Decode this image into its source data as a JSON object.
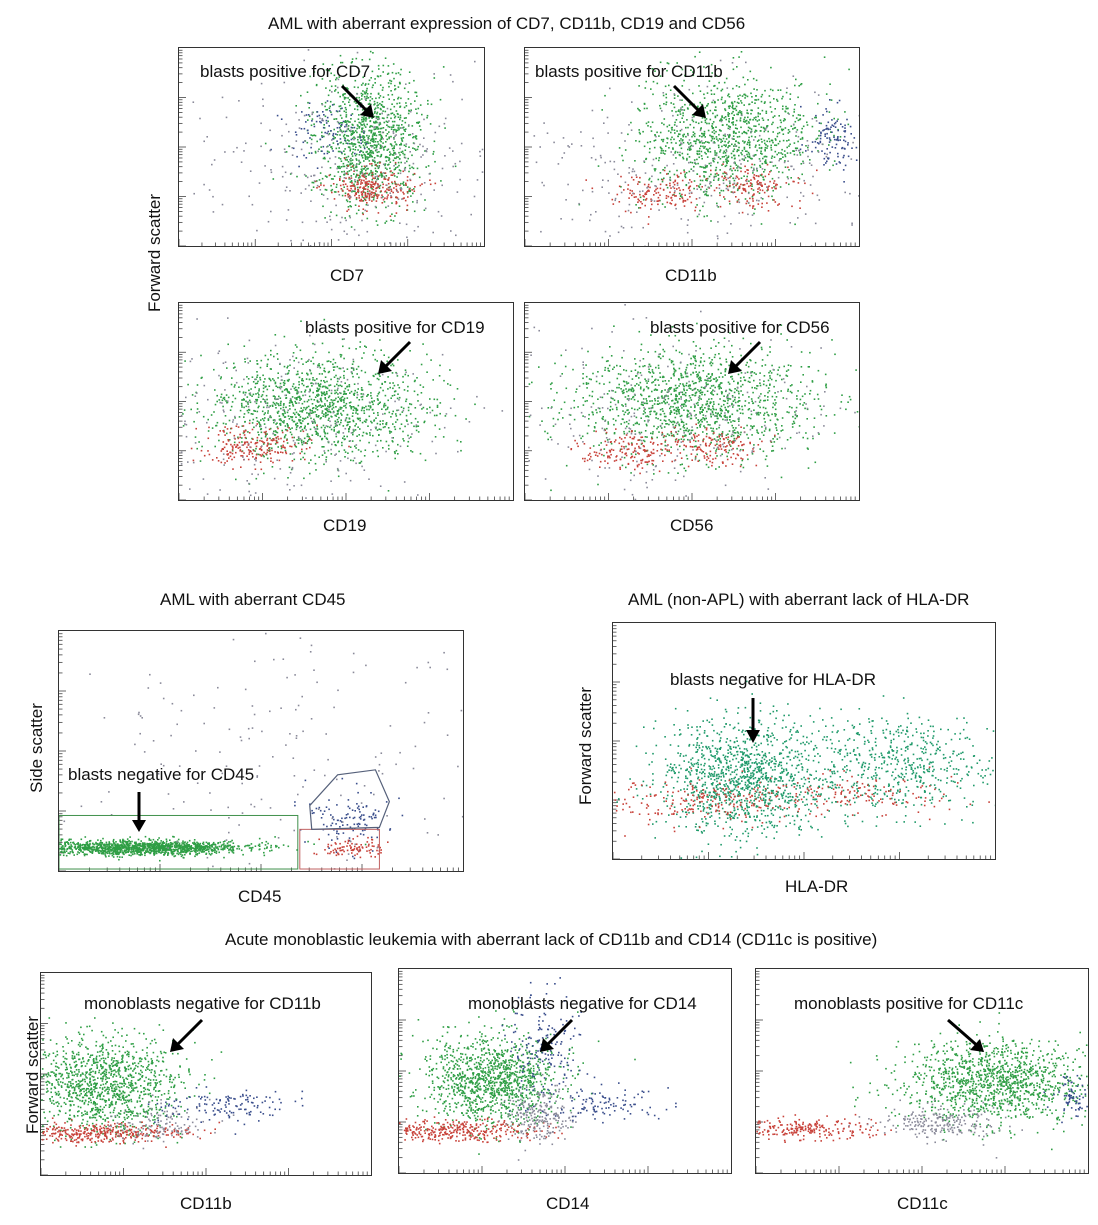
{
  "titles": {
    "top": "AML with aberrant expression of CD7, CD11b, CD19 and CD56",
    "cd45": "AML with aberrant  CD45",
    "hladr": "AML (non-APL) with aberrant  lack of HLA-DR",
    "mono": "Acute monoblastic leukemia with aberrant lack of CD11b and CD14 (CD11c is positive)"
  },
  "y_labels": {
    "top": "Forward scatter",
    "cd45": "Side scatter",
    "hladr": "Forward scatter",
    "mono": "Forward scatter"
  },
  "colors": {
    "green": "#2f9e45",
    "red": "#c8423a",
    "blue": "#3a4e8c",
    "grey": "#8a8a9a",
    "teal": "#1f9a6a"
  },
  "chart_data": [
    {
      "type": "scatter",
      "id": "cd7",
      "xlabel": "CD7",
      "ylabel": "Forward scatter",
      "annotation": "blasts positive for CD7",
      "populations": [
        {
          "color": "green",
          "cx": 0.62,
          "cy": 0.45,
          "sx": 0.09,
          "sy": 0.18,
          "n": 1100
        },
        {
          "color": "red",
          "cx": 0.63,
          "cy": 0.7,
          "sx": 0.07,
          "sy": 0.05,
          "n": 260
        },
        {
          "color": "blue",
          "cx": 0.48,
          "cy": 0.42,
          "sx": 0.06,
          "sy": 0.07,
          "n": 90
        },
        {
          "color": "grey",
          "cx": 0.55,
          "cy": 0.6,
          "sx": 0.25,
          "sy": 0.25,
          "n": 300
        }
      ]
    },
    {
      "type": "scatter",
      "id": "cd11b",
      "xlabel": "CD11b",
      "ylabel": "Forward scatter",
      "annotation": "blasts positive for CD11b",
      "populations": [
        {
          "color": "green",
          "cx": 0.6,
          "cy": 0.45,
          "sx": 0.13,
          "sy": 0.16,
          "n": 1100
        },
        {
          "color": "red",
          "cx": 0.4,
          "cy": 0.72,
          "sx": 0.08,
          "sy": 0.05,
          "n": 140
        },
        {
          "color": "red",
          "cx": 0.68,
          "cy": 0.7,
          "sx": 0.06,
          "sy": 0.05,
          "n": 140
        },
        {
          "color": "blue",
          "cx": 0.92,
          "cy": 0.45,
          "sx": 0.04,
          "sy": 0.08,
          "n": 110
        },
        {
          "color": "grey",
          "cx": 0.5,
          "cy": 0.6,
          "sx": 0.28,
          "sy": 0.22,
          "n": 300
        }
      ]
    },
    {
      "type": "scatter",
      "id": "cd19",
      "xlabel": "CD19",
      "ylabel": "Forward scatter",
      "annotation": "blasts positive for CD19",
      "populations": [
        {
          "color": "green",
          "cx": 0.42,
          "cy": 0.52,
          "sx": 0.17,
          "sy": 0.13,
          "n": 1300
        },
        {
          "color": "red",
          "cx": 0.22,
          "cy": 0.72,
          "sx": 0.08,
          "sy": 0.05,
          "n": 200
        },
        {
          "color": "grey",
          "cx": 0.35,
          "cy": 0.6,
          "sx": 0.25,
          "sy": 0.22,
          "n": 250
        }
      ]
    },
    {
      "type": "scatter",
      "id": "cd56",
      "xlabel": "CD56",
      "ylabel": "Forward scatter",
      "annotation": "blasts positive for CD56",
      "populations": [
        {
          "color": "green",
          "cx": 0.5,
          "cy": 0.5,
          "sx": 0.18,
          "sy": 0.14,
          "n": 1300
        },
        {
          "color": "red",
          "cx": 0.3,
          "cy": 0.74,
          "sx": 0.07,
          "sy": 0.05,
          "n": 150
        },
        {
          "color": "red",
          "cx": 0.55,
          "cy": 0.72,
          "sx": 0.07,
          "sy": 0.05,
          "n": 150
        },
        {
          "color": "grey",
          "cx": 0.45,
          "cy": 0.6,
          "sx": 0.25,
          "sy": 0.22,
          "n": 250
        }
      ]
    },
    {
      "type": "scatter",
      "id": "cd45",
      "xlabel": "CD45",
      "ylabel": "Side scatter",
      "annotation": "blasts negative for CD45",
      "populations": [
        {
          "color": "green",
          "cx": 0.2,
          "cy": 0.9,
          "sx": 0.13,
          "sy": 0.015,
          "n": 1400
        },
        {
          "color": "blue",
          "cx": 0.72,
          "cy": 0.78,
          "sx": 0.05,
          "sy": 0.06,
          "n": 120
        },
        {
          "color": "red",
          "cx": 0.72,
          "cy": 0.9,
          "sx": 0.04,
          "sy": 0.02,
          "n": 90
        },
        {
          "color": "grey",
          "cx": 0.6,
          "cy": 0.5,
          "sx": 0.3,
          "sy": 0.3,
          "n": 200
        }
      ]
    },
    {
      "type": "scatter",
      "id": "hladr",
      "xlabel": "HLA-DR",
      "ylabel": "Forward scatter",
      "annotation": "blasts negative for HLA-DR",
      "populations": [
        {
          "color": "teal",
          "cx": 0.34,
          "cy": 0.65,
          "sx": 0.11,
          "sy": 0.12,
          "n": 1200
        },
        {
          "color": "teal",
          "cx": 0.75,
          "cy": 0.6,
          "sx": 0.13,
          "sy": 0.1,
          "n": 550
        },
        {
          "color": "red",
          "cx": 0.25,
          "cy": 0.75,
          "sx": 0.14,
          "sy": 0.05,
          "n": 220
        },
        {
          "color": "red",
          "cx": 0.65,
          "cy": 0.72,
          "sx": 0.12,
          "sy": 0.04,
          "n": 120
        }
      ]
    },
    {
      "type": "scatter",
      "id": "mono_cd11b",
      "xlabel": "CD11b",
      "ylabel": "Forward scatter",
      "annotation": "monoblasts negative for CD11b",
      "populations": [
        {
          "color": "green",
          "cx": 0.18,
          "cy": 0.55,
          "sx": 0.12,
          "sy": 0.12,
          "n": 1200
        },
        {
          "color": "red",
          "cx": 0.17,
          "cy": 0.79,
          "sx": 0.13,
          "sy": 0.025,
          "n": 350
        },
        {
          "color": "grey",
          "cx": 0.35,
          "cy": 0.75,
          "sx": 0.07,
          "sy": 0.05,
          "n": 120
        },
        {
          "color": "blue",
          "cx": 0.55,
          "cy": 0.65,
          "sx": 0.1,
          "sy": 0.04,
          "n": 130
        }
      ]
    },
    {
      "type": "scatter",
      "id": "mono_cd14",
      "xlabel": "CD14",
      "ylabel": "Forward scatter",
      "annotation": "monoblasts negative for CD14",
      "populations": [
        {
          "color": "green",
          "cx": 0.28,
          "cy": 0.54,
          "sx": 0.1,
          "sy": 0.11,
          "n": 1150
        },
        {
          "color": "red",
          "cx": 0.18,
          "cy": 0.79,
          "sx": 0.12,
          "sy": 0.025,
          "n": 320
        },
        {
          "color": "grey",
          "cx": 0.42,
          "cy": 0.72,
          "sx": 0.05,
          "sy": 0.07,
          "n": 220
        },
        {
          "color": "blue",
          "cx": 0.42,
          "cy": 0.35,
          "sx": 0.06,
          "sy": 0.12,
          "n": 160
        },
        {
          "color": "blue",
          "cx": 0.62,
          "cy": 0.66,
          "sx": 0.1,
          "sy": 0.04,
          "n": 110
        }
      ]
    },
    {
      "type": "scatter",
      "id": "mono_cd11c",
      "xlabel": "CD11c",
      "ylabel": "Forward scatter",
      "annotation": "monoblasts positive for CD11c",
      "populations": [
        {
          "color": "green",
          "cx": 0.72,
          "cy": 0.55,
          "sx": 0.14,
          "sy": 0.1,
          "n": 1200
        },
        {
          "color": "red",
          "cx": 0.15,
          "cy": 0.78,
          "sx": 0.1,
          "sy": 0.025,
          "n": 220
        },
        {
          "color": "grey",
          "cx": 0.55,
          "cy": 0.75,
          "sx": 0.09,
          "sy": 0.04,
          "n": 220
        },
        {
          "color": "blue",
          "cx": 0.95,
          "cy": 0.62,
          "sx": 0.03,
          "sy": 0.05,
          "n": 70
        }
      ]
    }
  ]
}
